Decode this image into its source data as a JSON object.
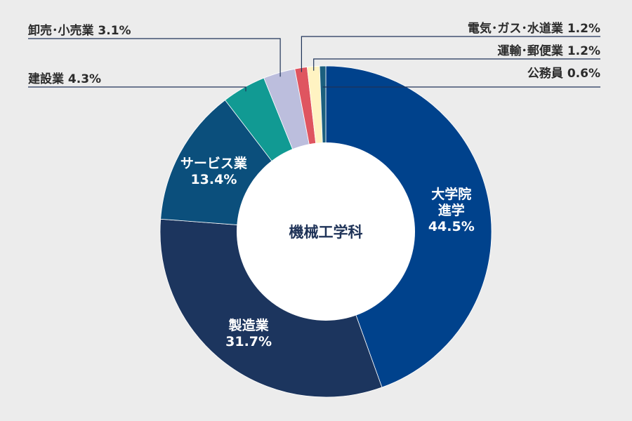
{
  "chart_data": {
    "type": "pie",
    "variant": "donut",
    "center_label": "機械工学科",
    "unit": "%",
    "slices": [
      {
        "name": "大学院進学",
        "label_lines": [
          "大学院",
          "進学",
          "44.5%"
        ],
        "value": 44.5,
        "color": "#00428c",
        "label_placement": "inside"
      },
      {
        "name": "製造業",
        "label_lines": [
          "製造業",
          "31.7%"
        ],
        "value": 31.7,
        "color": "#1c355e",
        "label_placement": "inside"
      },
      {
        "name": "サービス業",
        "label_lines": [
          "サービス業",
          "13.4%"
        ],
        "value": 13.4,
        "color": "#0b4f7c",
        "label_placement": "inside"
      },
      {
        "name": "建設業",
        "label_lines": [
          "建設業 4.3%"
        ],
        "value": 4.3,
        "color": "#119a93",
        "label_placement": "left"
      },
      {
        "name": "卸売・小売業",
        "label_lines": [
          "卸売･小売業 3.1%"
        ],
        "value": 3.1,
        "color": "#bcbedd",
        "label_placement": "left"
      },
      {
        "name": "電気・ガス・水道業",
        "label_lines": [
          "電気･ガス･水道業 1.2%"
        ],
        "value": 1.2,
        "color": "#df5560",
        "label_placement": "right"
      },
      {
        "name": "運輸・郵便業",
        "label_lines": [
          "運輸･郵便業 1.2%"
        ],
        "value": 1.2,
        "color": "#fff3c2",
        "label_placement": "right"
      },
      {
        "name": "公務員",
        "label_lines": [
          "公務員 0.6%"
        ],
        "value": 0.6,
        "color": "#1b5f7e",
        "label_placement": "right"
      }
    ]
  }
}
